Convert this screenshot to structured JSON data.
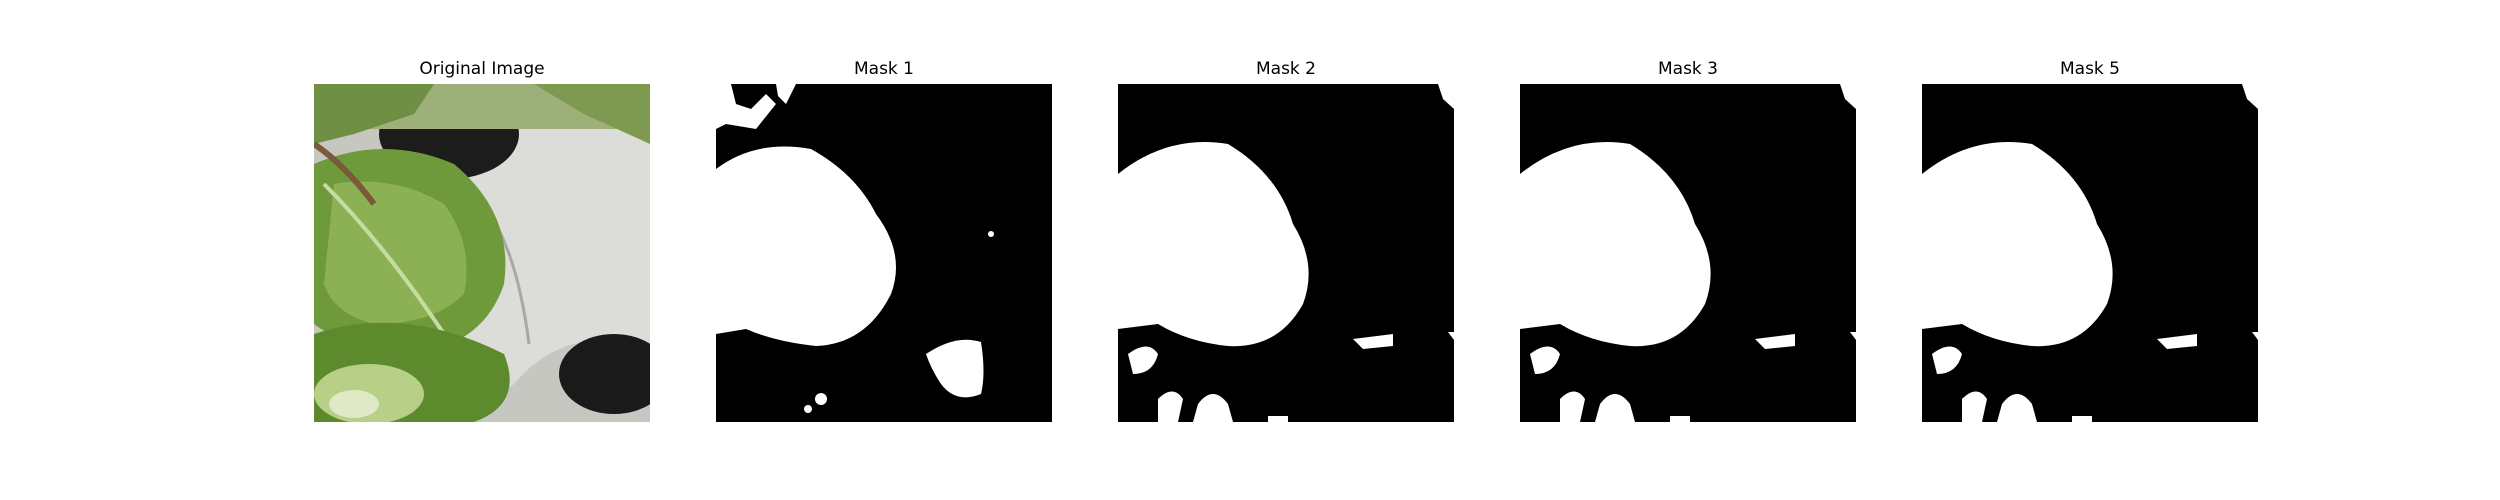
{
  "figure": {
    "panels": [
      {
        "title": "Original Image",
        "kind": "photo"
      },
      {
        "title": "Mask 1",
        "kind": "mask"
      },
      {
        "title": "Mask 2",
        "kind": "mask"
      },
      {
        "title": "Mask 3",
        "kind": "mask"
      },
      {
        "title": "Mask 5",
        "kind": "mask"
      }
    ]
  },
  "colors": {
    "mask_background": "#000000",
    "mask_foreground": "#ffffff",
    "leaf_dark": "#4f7a2c",
    "leaf_light": "#8fb05a",
    "pot_white": "#d9d9d6",
    "pot_shadow": "#1a1a1a"
  }
}
